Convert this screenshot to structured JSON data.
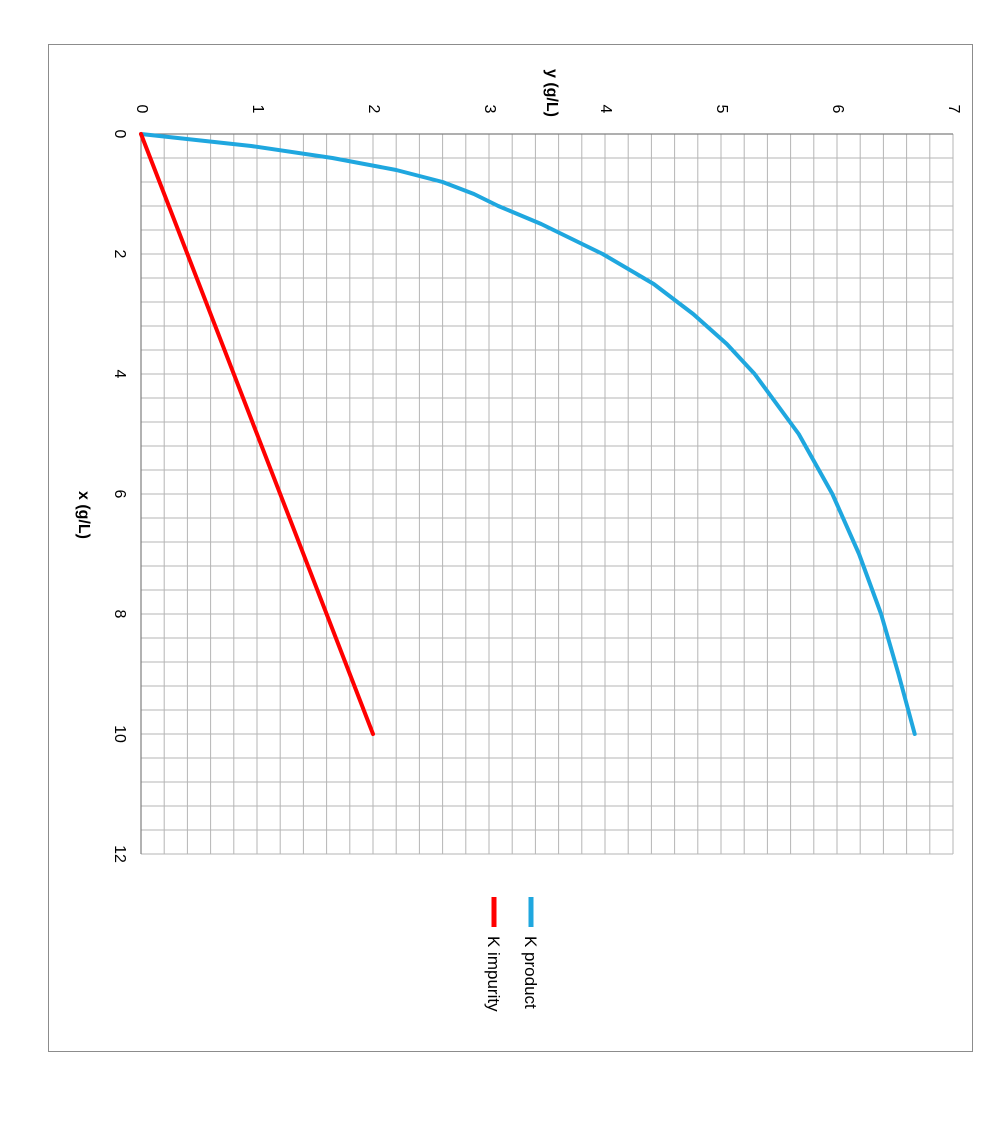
{
  "chart_data": {
    "type": "line",
    "orientation": "rotated-90-clockwise",
    "xlabel": "x   (g/L)",
    "ylabel": "y   (g/L)",
    "xlim": [
      0,
      12
    ],
    "ylim": [
      0,
      7
    ],
    "x_ticks": [
      "0",
      "2",
      "4",
      "6",
      "8",
      "10",
      "12"
    ],
    "y_ticks": [
      "0",
      "1",
      "2",
      "3",
      "4",
      "5",
      "6",
      "7"
    ],
    "x_minor_step": 0.4,
    "y_minor_step": 0.2,
    "grid": true,
    "legend_position": "right",
    "series": [
      {
        "name": "K product",
        "color": "#1fa7df",
        "x": [
          0,
          0.2,
          0.4,
          0.6,
          0.8,
          1.0,
          1.2,
          1.5,
          2.0,
          2.5,
          3.0,
          3.5,
          4.0,
          5.0,
          6.0,
          7.0,
          8.0,
          9.0,
          10.0
        ],
        "y": [
          0,
          0.95,
          1.65,
          2.2,
          2.6,
          2.87,
          3.08,
          3.45,
          3.98,
          4.42,
          4.76,
          5.05,
          5.29,
          5.67,
          5.96,
          6.19,
          6.38,
          6.53,
          6.67
        ]
      },
      {
        "name": "K impurity",
        "color": "#ff0000",
        "x": [
          0,
          10
        ],
        "y": [
          0,
          2
        ]
      }
    ]
  }
}
